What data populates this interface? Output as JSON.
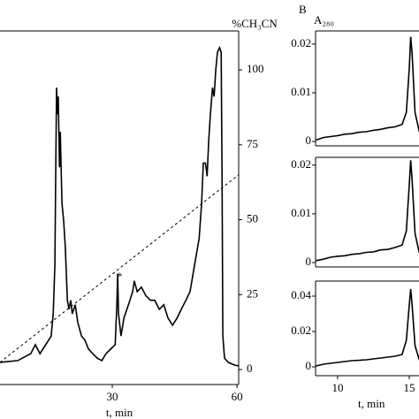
{
  "chart_data": [
    {
      "type": "line",
      "x_label": "t, min",
      "y2label": "%CH₃CN",
      "annotation": "*",
      "xlim": [
        3,
        60.4
      ],
      "xticks": [
        30,
        60
      ],
      "y2lim": [
        -5,
        113
      ],
      "y2ticks": [
        0,
        25,
        50,
        75,
        100
      ],
      "series": [
        {
          "color": "#000000",
          "axis": "y2",
          "dash": false,
          "x": [
            3.0,
            7.3,
            10.4,
            11.5,
            12.6,
            14.7,
            15.3,
            15.8,
            16.2,
            16.4,
            16.6,
            16.8,
            17.0,
            17.3,
            17.5,
            17.9,
            18.3,
            18.7,
            19.2,
            19.6,
            20.0,
            20.4,
            21.1,
            21.7,
            22.6,
            23.4,
            24.3,
            25.3,
            26.4,
            27.5,
            28.5,
            29.6,
            30.7,
            31.1,
            31.3,
            31.5,
            32.1,
            32.8,
            33.9,
            34.9,
            35.3,
            36.0,
            37.0,
            38.1,
            39.2,
            40.2,
            41.3,
            42.4,
            43.4,
            44.5,
            45.6,
            46.6,
            47.7,
            48.7,
            49.8,
            50.9,
            51.5,
            51.9,
            52.4,
            52.8,
            53.2,
            53.6,
            54.1,
            54.5,
            54.9,
            55.3,
            55.8,
            56.2,
            56.4,
            56.6,
            57.0,
            57.9,
            59.4,
            60.4
          ],
          "values": [
            2.4,
            3.0,
            5.3,
            8.3,
            5.3,
            9.8,
            11.2,
            18.6,
            34.9,
            64.5,
            94.1,
            85.2,
            91.1,
            67.5,
            79.3,
            55.6,
            49.7,
            40.8,
            23.1,
            20.1,
            23.1,
            18.6,
            21.6,
            15.7,
            11.2,
            9.8,
            6.8,
            5.3,
            3.8,
            3.0,
            5.3,
            6.8,
            8.3,
            21.6,
            32.0,
            18.6,
            11.2,
            17.2,
            21.6,
            26.0,
            29.6,
            26.0,
            27.5,
            24.6,
            23.1,
            23.1,
            20.1,
            21.6,
            17.2,
            14.8,
            17.2,
            20.1,
            23.1,
            26.0,
            34.9,
            43.8,
            55.6,
            68.9,
            68.9,
            64.5,
            76.3,
            85.2,
            94.1,
            91.1,
            100,
            105.9,
            107.4,
            105.9,
            64.5,
            11.2,
            3.8,
            2.4,
            1.5,
            1.2
          ]
        },
        {
          "color": "#000000",
          "axis": "y2",
          "dash": true,
          "x": [
            3.0,
            60.4
          ],
          "values": [
            2.4,
            65
          ]
        }
      ]
    },
    {
      "type": "line",
      "panel_label": "B",
      "y_label": "A₂₈₀",
      "xlim": [
        8.46,
        15.68
      ],
      "ylim": [
        -0.0009,
        0.0227
      ],
      "yticks": [
        0,
        0.01,
        0.02
      ],
      "series": [
        {
          "color": "#000000",
          "dash": false,
          "x": [
            8.5,
            9,
            9.5,
            10,
            10.5,
            11,
            11.5,
            12,
            12.5,
            13,
            13.5,
            14,
            14.5,
            14.8,
            15.0,
            15.1,
            15.2,
            15.4,
            15.7
          ],
          "values": [
            0.0003,
            0.0008,
            0.001,
            0.0012,
            0.0015,
            0.0016,
            0.0019,
            0.002,
            0.0023,
            0.0025,
            0.0028,
            0.003,
            0.0035,
            0.006,
            0.015,
            0.0215,
            0.018,
            0.006,
            0.002
          ]
        }
      ]
    },
    {
      "type": "line",
      "xlim": [
        8.46,
        15.68
      ],
      "ylim": [
        -0.0009,
        0.0216
      ],
      "yticks": [
        0,
        0.01,
        0.02
      ],
      "series": [
        {
          "color": "#000000",
          "dash": false,
          "x": [
            8.5,
            9,
            9.5,
            10,
            10.5,
            11,
            11.5,
            12,
            12.5,
            13,
            13.5,
            14,
            14.5,
            14.8,
            15.0,
            15.1,
            15.2,
            15.4,
            15.7
          ],
          "values": [
            0.0004,
            0.0007,
            0.0011,
            0.0013,
            0.0014,
            0.0017,
            0.0018,
            0.0021,
            0.0022,
            0.0026,
            0.0027,
            0.0031,
            0.0036,
            0.0065,
            0.016,
            0.021,
            0.017,
            0.006,
            0.002
          ]
        }
      ]
    },
    {
      "type": "line",
      "x_label": "t, min",
      "xlim": [
        8.46,
        15.68
      ],
      "xticks": [
        10,
        15
      ],
      "ylim": [
        -0.005,
        0.0485
      ],
      "yticks": [
        0,
        0.02,
        0.04
      ],
      "series": [
        {
          "color": "#000000",
          "dash": false,
          "x": [
            8.5,
            9,
            9.5,
            10,
            10.5,
            11,
            11.5,
            12,
            12.5,
            13,
            13.5,
            14,
            14.5,
            14.8,
            15.0,
            15.1,
            15.2,
            15.4,
            15.7
          ],
          "values": [
            0.0005,
            0.0015,
            0.002,
            0.0025,
            0.003,
            0.0035,
            0.0037,
            0.004,
            0.0045,
            0.005,
            0.0055,
            0.006,
            0.007,
            0.015,
            0.035,
            0.044,
            0.035,
            0.012,
            0.004
          ]
        }
      ]
    }
  ]
}
